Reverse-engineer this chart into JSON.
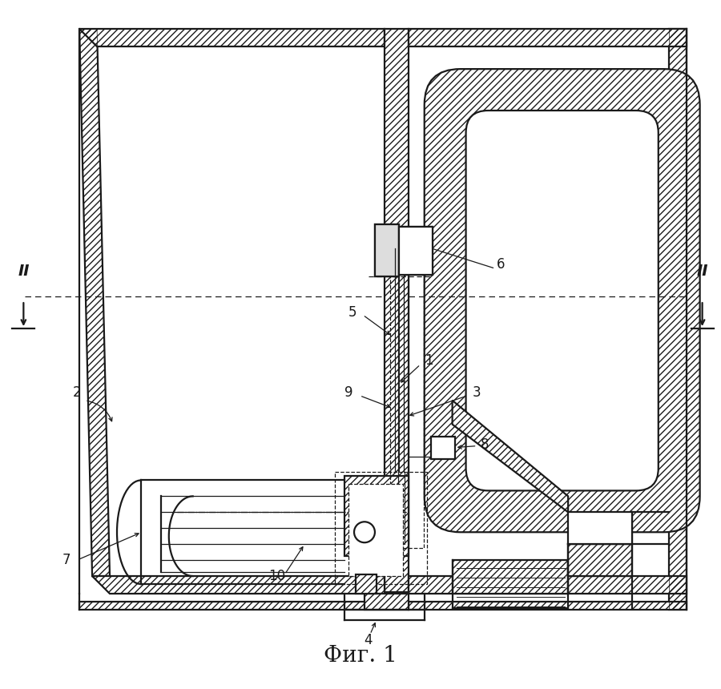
{
  "background_color": "#ffffff",
  "line_color": "#1a1a1a",
  "fig_label": "Фиг. 1",
  "section_label": "II",
  "lw_main": 1.6,
  "lw_thin": 0.9,
  "hatch_density": "////",
  "figsize": [
    9.0,
    8.6
  ],
  "dpi": 100,
  "label_fs": 12,
  "title_fs": 20
}
